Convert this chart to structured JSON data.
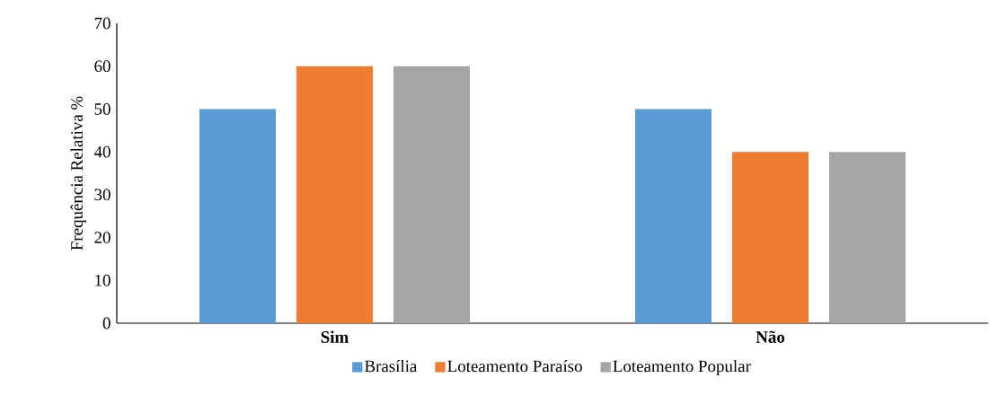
{
  "chart_data": {
    "type": "bar",
    "ylabel": "Frequência Relativa %",
    "categories": [
      "Sim",
      "Não"
    ],
    "series": [
      {
        "name": "Brasília",
        "color": "#5b9bd5",
        "values": [
          50,
          50
        ]
      },
      {
        "name": "Loteamento Paraíso",
        "color": "#ed7d31",
        "values": [
          60,
          40
        ]
      },
      {
        "name": "Loteamento Popular",
        "color": "#a5a5a5",
        "values": [
          60,
          40
        ]
      }
    ],
    "ylim": [
      0,
      70
    ],
    "yticks": [
      0,
      10,
      20,
      30,
      40,
      50,
      60,
      70
    ],
    "grid": false,
    "legend": "bottom"
  }
}
